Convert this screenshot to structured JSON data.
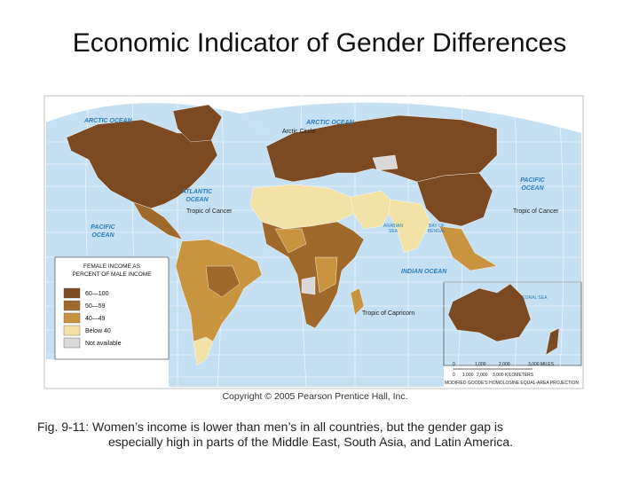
{
  "title": "Economic Indicator of Gender Differences",
  "map": {
    "labels": {
      "arctic_ocean_west": [
        "ARCTIC OCEAN"
      ],
      "arctic_ocean_east": [
        "ARCTIC OCEAN"
      ],
      "arctic_circle": "Arctic Circle",
      "atlantic_ocean": [
        "ATLANTIC",
        "OCEAN"
      ],
      "tropic_of_cancer_west": "Tropic of Cancer",
      "tropic_of_cancer_east": "Tropic of Cancer",
      "pacific_ocean_west": [
        "PACIFIC",
        "OCEAN"
      ],
      "pacific_ocean_east": [
        "PACIFIC",
        "OCEAN"
      ],
      "indian_ocean": [
        "INDIAN OCEAN"
      ],
      "arabian_sea": [
        "ARABIAN",
        "SEA"
      ],
      "bay_of_bengal": [
        "BAY OF",
        "BENGAL"
      ],
      "tropic_of_capricorn": "Tropic of Capricorn",
      "coral_sea": [
        "CORAL SEA"
      ]
    },
    "legend": {
      "title": [
        "FEMALE INCOME AS",
        "PERCENT OF MALE INCOME"
      ],
      "items": [
        {
          "label": "60—100",
          "color": "#7b4a22"
        },
        {
          "label": "50—59",
          "color": "#a0692c"
        },
        {
          "label": "40—49",
          "color": "#c99440"
        },
        {
          "label": "Below 40",
          "color": "#f3e2a6"
        },
        {
          "label": "Not available",
          "color": "#d9d9d9"
        }
      ]
    },
    "scale": {
      "miles": [
        "0",
        "1,000",
        "2,000",
        "3,000 MILES"
      ],
      "kilometers": [
        "0",
        "1,000",
        "2,000",
        "3,000 KILOMETERS"
      ]
    },
    "projection": "MODIFIED GOODE'S HOMOLOSINE EQUAL-AREA PROJECTION"
  },
  "copyright": "Copyright © 2005 Pearson Prentice Hall, Inc.",
  "caption": [
    "Fig. 9-11: Women’s income is lower than men’s in all countries, but the gender gap is",
    "especially high in parts of the Middle East, South Asia, and Latin America."
  ]
}
